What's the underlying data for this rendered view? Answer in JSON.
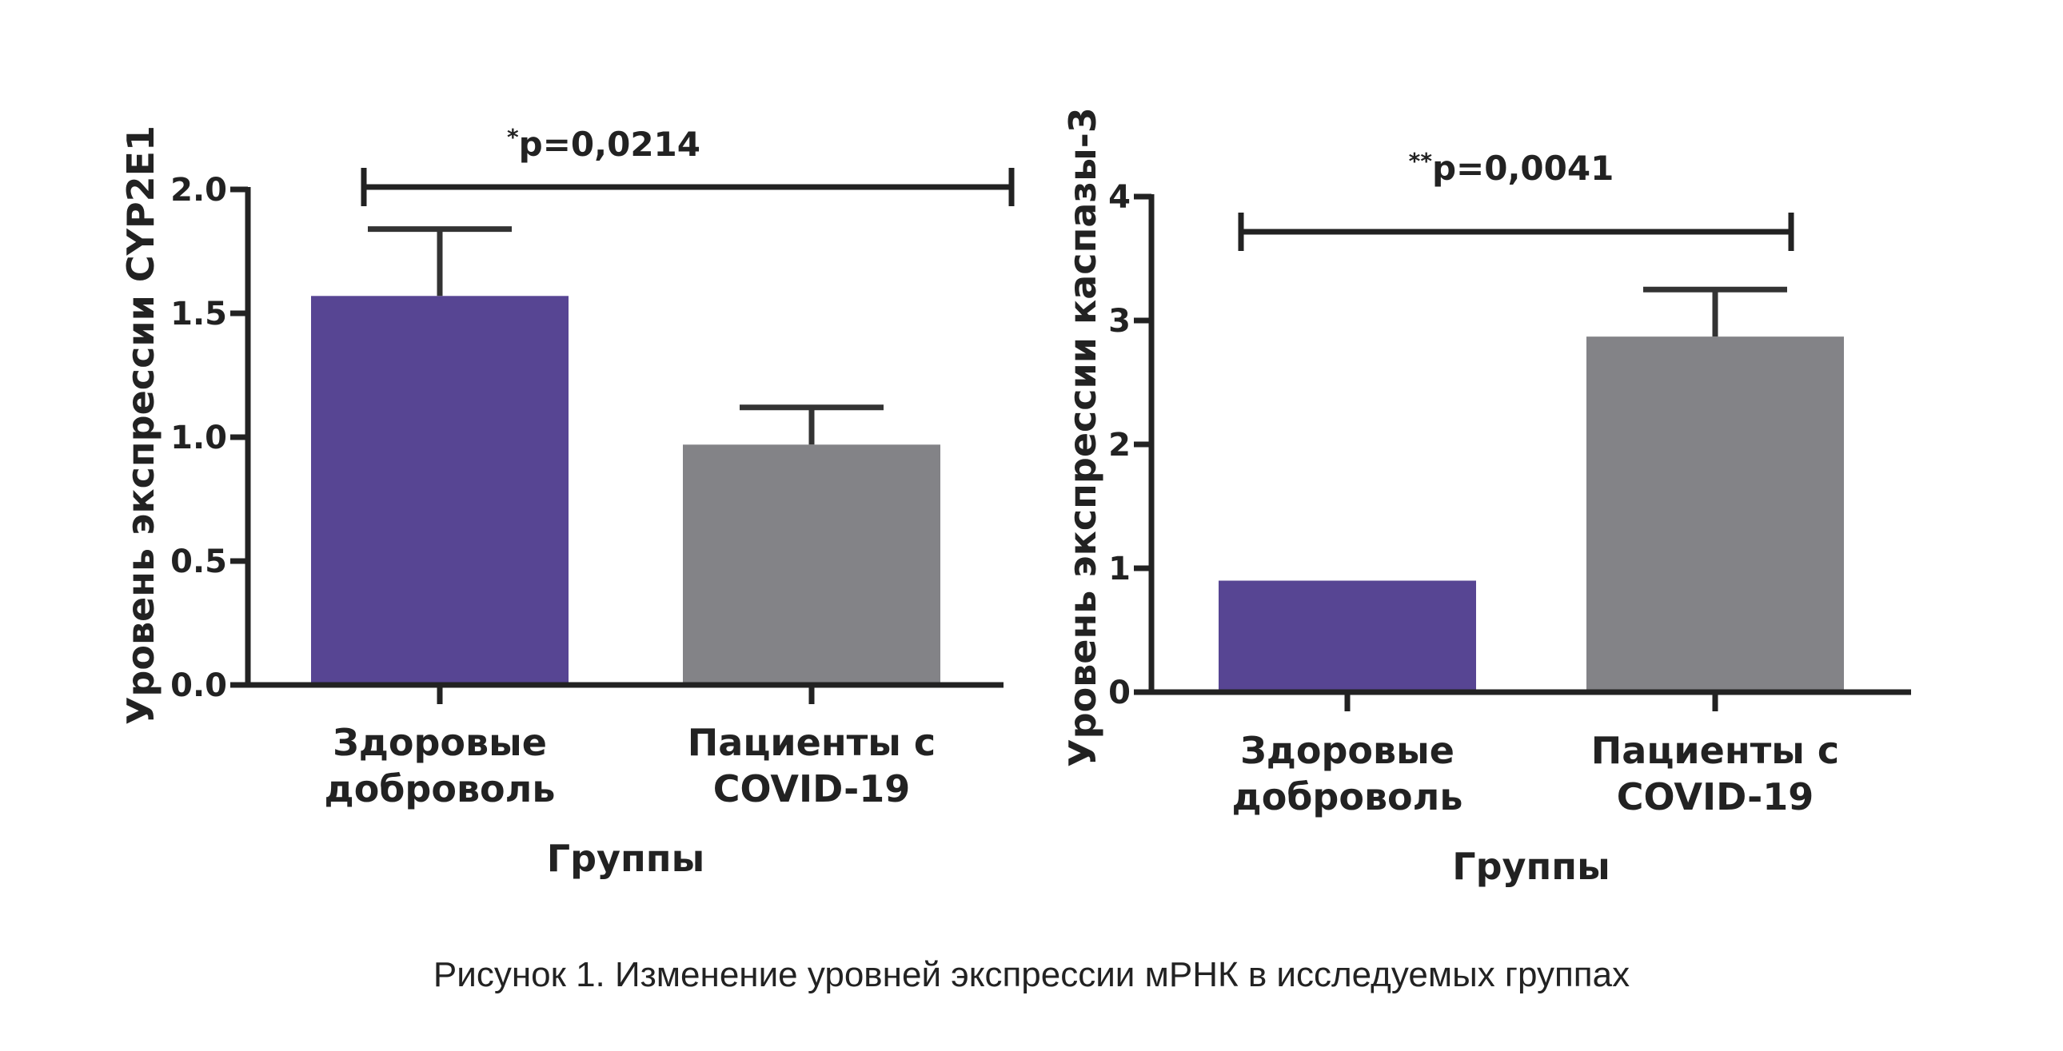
{
  "caption": "Рисунок 1. Изменение уровней экспрессии мРНК в исследуемых группах",
  "colors": {
    "healthy": "#574593",
    "covid": "#838387",
    "axis": "#222222"
  },
  "chart_data": [
    {
      "type": "bar",
      "categories": [
        [
          "Здоровые",
          "доброволь"
        ],
        [
          "Пациенты с",
          "COVID-19"
        ]
      ],
      "values": [
        1.57,
        0.97
      ],
      "errors": [
        0.27,
        0.15
      ],
      "xlabel": "Группы",
      "ylabel": "Уровень экспрессии CYP2E1",
      "ylim": [
        0,
        2.0
      ],
      "yticks": [
        0.0,
        0.5,
        1.0,
        1.5,
        2.0
      ],
      "ytick_labels": [
        "0.0",
        "0.5",
        "1.0",
        "1.5",
        "2.0"
      ],
      "significance": {
        "star": "*",
        "text": "p=0,0214"
      },
      "grid": false
    },
    {
      "type": "bar",
      "categories": [
        [
          "Здоровые",
          "доброволь"
        ],
        [
          "Пациенты с",
          "COVID-19"
        ]
      ],
      "values": [
        0.9,
        2.87
      ],
      "errors": [
        0.0,
        0.38
      ],
      "xlabel": "Группы",
      "ylabel": "Уровень экспрессии каспазы-3",
      "ylim": [
        0,
        4
      ],
      "yticks": [
        0,
        1,
        2,
        3,
        4
      ],
      "ytick_labels": [
        "0",
        "1",
        "2",
        "3",
        "4"
      ],
      "significance": {
        "star": "**",
        "text": "p=0,0041"
      },
      "grid": false
    }
  ]
}
